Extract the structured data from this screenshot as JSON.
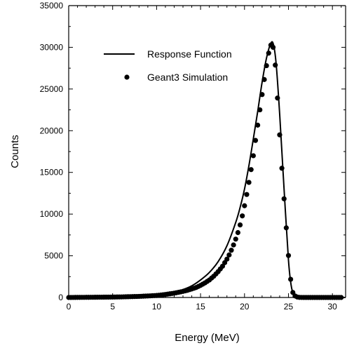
{
  "chart_data": {
    "type": "line",
    "title": "",
    "xlabel": "Energy (MeV)",
    "ylabel": "Counts",
    "xlim": [
      0,
      31.5
    ],
    "ylim": [
      0,
      35000
    ],
    "x_ticks": [
      0,
      5,
      10,
      15,
      20,
      25,
      30
    ],
    "y_ticks": [
      0,
      5000,
      10000,
      15000,
      20000,
      25000,
      30000,
      35000
    ],
    "grid": false,
    "legend_position": "top-left",
    "legend": [
      {
        "label": "Response Function",
        "kind": "line"
      },
      {
        "label": "Geant3 Simulation",
        "kind": "marker"
      }
    ],
    "series": [
      {
        "name": "Response Function",
        "style": "line",
        "x": [
          0,
          5,
          8,
          10,
          11,
          12,
          13,
          14,
          15,
          16,
          17,
          18,
          19,
          19.5,
          20,
          20.5,
          21,
          21.5,
          22,
          22.5,
          23,
          23.3,
          23.6,
          24,
          24.5,
          25,
          25.3,
          25.6,
          26,
          28,
          31.5
        ],
        "y": [
          0,
          30,
          100,
          250,
          400,
          650,
          950,
          1400,
          2100,
          3000,
          4300,
          6200,
          9000,
          10800,
          13000,
          15800,
          19000,
          22300,
          25800,
          28700,
          30500,
          30300,
          28000,
          22000,
          13000,
          4500,
          1500,
          300,
          50,
          0,
          0
        ]
      },
      {
        "name": "Geant3 Simulation",
        "style": "marker",
        "x": [
          0,
          1,
          2,
          3,
          4,
          5,
          6,
          7,
          8,
          9,
          10,
          10.5,
          11,
          11.5,
          12,
          12.5,
          13,
          13.5,
          14,
          14.5,
          15,
          15.5,
          16,
          16.5,
          17,
          17.5,
          18,
          18.3,
          18.6,
          18.9,
          19.2,
          19.5,
          19.8,
          20.1,
          20.4,
          20.7,
          21,
          21.3,
          21.6,
          21.9,
          22.2,
          22.5,
          22.8,
          23.1,
          23.4,
          23.7,
          24,
          24.3,
          24.6,
          24.9,
          25.2,
          25.5,
          25.8,
          26.2,
          27,
          28,
          29,
          30,
          31
        ],
        "y": [
          0,
          10,
          20,
          30,
          40,
          50,
          70,
          100,
          130,
          180,
          240,
          300,
          360,
          440,
          520,
          620,
          730,
          860,
          1020,
          1200,
          1450,
          1750,
          2100,
          2550,
          3100,
          3750,
          4600,
          5200,
          5900,
          6700,
          7600,
          8700,
          10000,
          11500,
          13200,
          15000,
          17000,
          19200,
          21400,
          23600,
          25800,
          27800,
          29600,
          30600,
          29400,
          24800,
          19500,
          14700,
          10400,
          6300,
          2500,
          600,
          100,
          10,
          0,
          0,
          0,
          0,
          0
        ]
      }
    ]
  }
}
